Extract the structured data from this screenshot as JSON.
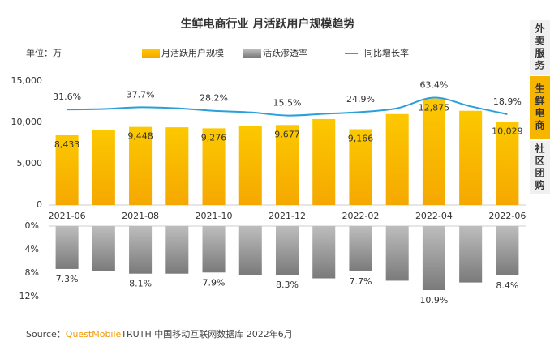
{
  "chart_data": {
    "type": "combo",
    "title": "生鲜电商行业 月活跃用户规模趋势",
    "unit": "单位：万",
    "categories": [
      "2021-06",
      null,
      "2021-08",
      null,
      "2021-10",
      null,
      "2021-12",
      null,
      "2022-02",
      null,
      "2022-04",
      null,
      "2022-06"
    ],
    "series": [
      {
        "name": "月活跃用户规模",
        "type": "bar",
        "axis": "y",
        "color": "#f8b500",
        "values": [
          8433,
          9100,
          9448,
          9400,
          9276,
          9600,
          9677,
          10400,
          9166,
          11000,
          12875,
          11400,
          10029
        ],
        "value_labels": [
          "8,433",
          null,
          "9,448",
          null,
          "9,276",
          null,
          "9,677",
          null,
          "9,166",
          null,
          "12,875",
          null,
          "10,029"
        ]
      },
      {
        "name": "活跃渗透率",
        "type": "bar",
        "axis": "y2",
        "color": "#8c8c8c",
        "values": [
          7.3,
          7.7,
          8.1,
          8.1,
          7.9,
          8.3,
          8.3,
          8.9,
          7.7,
          9.3,
          10.9,
          9.6,
          8.4
        ],
        "value_labels": [
          "7.3%",
          null,
          "8.1%",
          null,
          "7.9%",
          null,
          "8.3%",
          null,
          "7.7%",
          null,
          "10.9%",
          null,
          "8.4%"
        ]
      },
      {
        "name": "同比增长率",
        "type": "line",
        "color": "#2b9fd9",
        "values": [
          31.6,
          33,
          37.7,
          35,
          28.2,
          24,
          15.5,
          20,
          24.9,
          35,
          63.4,
          40,
          18.9
        ],
        "value_labels": [
          "31.6%",
          null,
          "37.7%",
          null,
          "28.2%",
          null,
          "15.5%",
          null,
          "24.9%",
          null,
          "63.4%",
          null,
          "18.9%"
        ]
      }
    ],
    "ylim": [
      0,
      15000
    ],
    "yticks": [
      {
        "value": 0,
        "label": "0"
      },
      {
        "value": 5000,
        "label": "5,000"
      },
      {
        "value": 10000,
        "label": "10,000"
      },
      {
        "value": 15000,
        "label": "15,000"
      }
    ],
    "y2lim": [
      0,
      12
    ],
    "y2ticks": [
      {
        "value": 0,
        "label": "0%"
      },
      {
        "value": 4,
        "label": "4%"
      },
      {
        "value": 8,
        "label": "8%"
      },
      {
        "value": 12,
        "label": "12%"
      }
    ],
    "source": {
      "label": "Source：",
      "brand": "QuestMobile",
      "text": "TRUTH 中国移动互联网数据库 2022年6月"
    }
  },
  "tabs": [
    "外卖服务",
    "生鲜电商",
    "社区团购"
  ],
  "active_tab": 1
}
